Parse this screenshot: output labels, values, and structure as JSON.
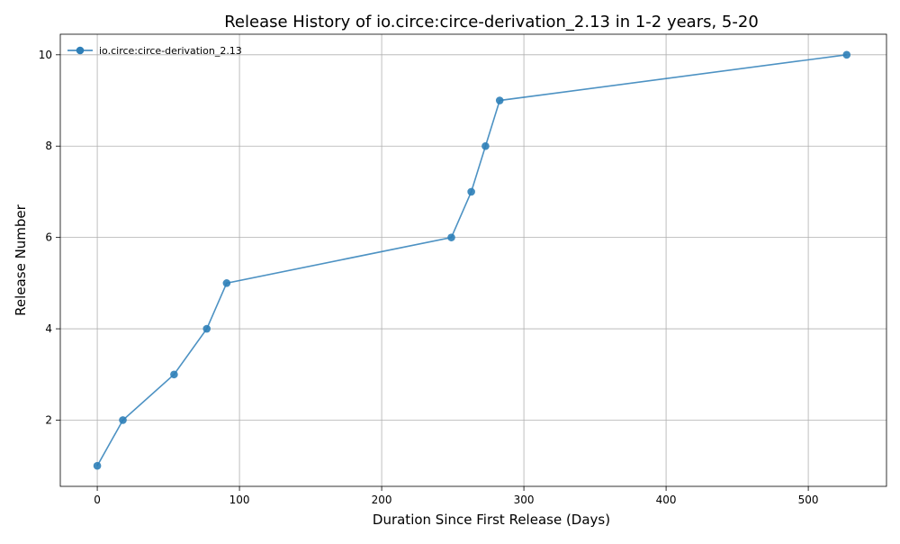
{
  "chart_data": {
    "type": "line",
    "title": "Release History of io.circe:circe-derivation_2.13 in 1-2 years, 5-20",
    "xlabel": "Duration Since First Release (Days)",
    "ylabel": "Release Number",
    "xlim": [
      -26,
      555
    ],
    "ylim": [
      0.55,
      10.45
    ],
    "xticks": [
      0,
      100,
      200,
      300,
      400,
      500
    ],
    "yticks": [
      2,
      4,
      6,
      8,
      10
    ],
    "grid": true,
    "legend_position": "top-left",
    "series": [
      {
        "name": "io.circe:circe-derivation_2.13",
        "color": "#2e7fb8",
        "marker": "circle",
        "x": [
          0,
          18,
          54,
          77,
          91,
          249,
          263,
          273,
          283,
          527
        ],
        "y": [
          1,
          2,
          3,
          4,
          5,
          6,
          7,
          8,
          9,
          10
        ]
      }
    ]
  }
}
